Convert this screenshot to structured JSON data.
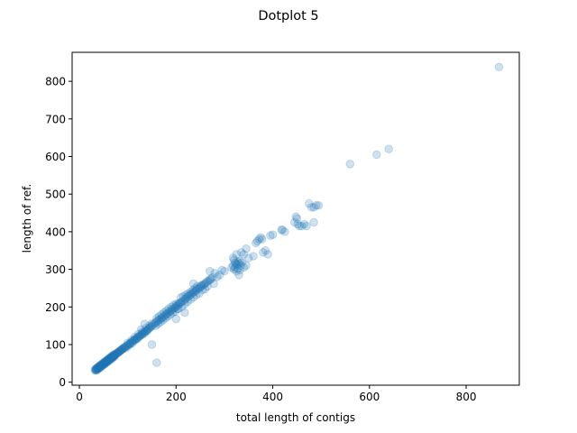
{
  "chart_data": {
    "type": "scatter",
    "title": "Dotplot 5",
    "xlabel": "total length of contigs",
    "ylabel": "length of ref.",
    "xlim": [
      -15,
      910
    ],
    "ylim": [
      -8,
      877
    ],
    "xticks": [
      0,
      200,
      400,
      600,
      800
    ],
    "yticks": [
      0,
      100,
      200,
      300,
      400,
      500,
      600,
      700,
      800
    ],
    "xtick_labels": [
      "0",
      "200",
      "400",
      "600",
      "800"
    ],
    "ytick_labels": [
      "0",
      "100",
      "200",
      "300",
      "400",
      "500",
      "600",
      "700",
      "800"
    ],
    "grid": false,
    "legend": "none",
    "marker_color": "#1f77b4",
    "marker_alpha": 0.22,
    "series": [
      {
        "points": [
          [
            32,
            32
          ],
          [
            33,
            33
          ],
          [
            34,
            33
          ],
          [
            35,
            34
          ],
          [
            36,
            35
          ],
          [
            37,
            36
          ],
          [
            38,
            37
          ],
          [
            39,
            38
          ],
          [
            40,
            39
          ],
          [
            41,
            40
          ],
          [
            42,
            41
          ],
          [
            43,
            42
          ],
          [
            44,
            43
          ],
          [
            45,
            44
          ],
          [
            46,
            45
          ],
          [
            47,
            46
          ],
          [
            48,
            47
          ],
          [
            49,
            48
          ],
          [
            50,
            49
          ],
          [
            51,
            50
          ],
          [
            52,
            51
          ],
          [
            53,
            52
          ],
          [
            54,
            53
          ],
          [
            55,
            54
          ],
          [
            56,
            55
          ],
          [
            57,
            56
          ],
          [
            58,
            57
          ],
          [
            59,
            58
          ],
          [
            60,
            59
          ],
          [
            61,
            60
          ],
          [
            62,
            61
          ],
          [
            63,
            62
          ],
          [
            64,
            63
          ],
          [
            65,
            64
          ],
          [
            66,
            65
          ],
          [
            67,
            66
          ],
          [
            68,
            67
          ],
          [
            69,
            68
          ],
          [
            70,
            69
          ],
          [
            71,
            70
          ],
          [
            72,
            71
          ],
          [
            73,
            72
          ],
          [
            74,
            73
          ],
          [
            75,
            74
          ],
          [
            76,
            75
          ],
          [
            77,
            76
          ],
          [
            78,
            77
          ],
          [
            79,
            78
          ],
          [
            80,
            79
          ],
          [
            81,
            80
          ],
          [
            82,
            81
          ],
          [
            83,
            82
          ],
          [
            84,
            83
          ],
          [
            85,
            84
          ],
          [
            86,
            85
          ],
          [
            87,
            86
          ],
          [
            88,
            87
          ],
          [
            89,
            88
          ],
          [
            90,
            89
          ],
          [
            91,
            90
          ],
          [
            34,
            36
          ],
          [
            36,
            38
          ],
          [
            38,
            40
          ],
          [
            40,
            42
          ],
          [
            42,
            44
          ],
          [
            44,
            46
          ],
          [
            46,
            48
          ],
          [
            48,
            50
          ],
          [
            50,
            52
          ],
          [
            52,
            54
          ],
          [
            54,
            56
          ],
          [
            56,
            58
          ],
          [
            58,
            60
          ],
          [
            60,
            62
          ],
          [
            62,
            64
          ],
          [
            64,
            66
          ],
          [
            66,
            68
          ],
          [
            68,
            70
          ],
          [
            70,
            72
          ],
          [
            72,
            74
          ],
          [
            35,
            31
          ],
          [
            37,
            33
          ],
          [
            39,
            35
          ],
          [
            41,
            37
          ],
          [
            43,
            39
          ],
          [
            45,
            41
          ],
          [
            47,
            43
          ],
          [
            49,
            45
          ],
          [
            51,
            47
          ],
          [
            53,
            49
          ],
          [
            55,
            51
          ],
          [
            57,
            53
          ],
          [
            59,
            55
          ],
          [
            61,
            57
          ],
          [
            63,
            59
          ],
          [
            65,
            61
          ],
          [
            67,
            63
          ],
          [
            69,
            65
          ],
          [
            71,
            67
          ],
          [
            73,
            69
          ],
          [
            92,
            92
          ],
          [
            94,
            93
          ],
          [
            96,
            95
          ],
          [
            98,
            97
          ],
          [
            100,
            99
          ],
          [
            102,
            100
          ],
          [
            104,
            103
          ],
          [
            106,
            104
          ],
          [
            108,
            107
          ],
          [
            110,
            108
          ],
          [
            112,
            111
          ],
          [
            114,
            112
          ],
          [
            116,
            115
          ],
          [
            118,
            116
          ],
          [
            120,
            119
          ],
          [
            122,
            120
          ],
          [
            124,
            123
          ],
          [
            126,
            124
          ],
          [
            128,
            127
          ],
          [
            130,
            128
          ],
          [
            132,
            131
          ],
          [
            134,
            133
          ],
          [
            136,
            135
          ],
          [
            138,
            136
          ],
          [
            140,
            139
          ],
          [
            142,
            140
          ],
          [
            144,
            143
          ],
          [
            146,
            145
          ],
          [
            148,
            147
          ],
          [
            150,
            149
          ],
          [
            95,
            90
          ],
          [
            100,
            95
          ],
          [
            105,
            101
          ],
          [
            110,
            104
          ],
          [
            115,
            112
          ],
          [
            120,
            115
          ],
          [
            125,
            122
          ],
          [
            130,
            126
          ],
          [
            135,
            130
          ],
          [
            140,
            136
          ],
          [
            100,
            104
          ],
          [
            108,
            112
          ],
          [
            115,
            120
          ],
          [
            122,
            128
          ],
          [
            130,
            134
          ],
          [
            138,
            144
          ],
          [
            145,
            150
          ],
          [
            150,
            156
          ],
          [
            135,
            155
          ],
          [
            128,
            140
          ],
          [
            152,
            152
          ],
          [
            155,
            156
          ],
          [
            158,
            158
          ],
          [
            160,
            161
          ],
          [
            162,
            164
          ],
          [
            165,
            166
          ],
          [
            168,
            168
          ],
          [
            170,
            171
          ],
          [
            172,
            172
          ],
          [
            175,
            176
          ],
          [
            178,
            178
          ],
          [
            180,
            181
          ],
          [
            182,
            183
          ],
          [
            185,
            186
          ],
          [
            188,
            188
          ],
          [
            190,
            191
          ],
          [
            192,
            193
          ],
          [
            195,
            196
          ],
          [
            198,
            198
          ],
          [
            200,
            201
          ],
          [
            160,
            170
          ],
          [
            165,
            175
          ],
          [
            170,
            180
          ],
          [
            175,
            185
          ],
          [
            180,
            190
          ],
          [
            185,
            195
          ],
          [
            190,
            200
          ],
          [
            195,
            205
          ],
          [
            200,
            208
          ],
          [
            205,
            210
          ],
          [
            158,
            150
          ],
          [
            163,
            155
          ],
          [
            168,
            160
          ],
          [
            173,
            165
          ],
          [
            178,
            170
          ],
          [
            183,
            175
          ],
          [
            188,
            180
          ],
          [
            193,
            185
          ],
          [
            198,
            188
          ],
          [
            203,
            195
          ],
          [
            202,
            203
          ],
          [
            205,
            206
          ],
          [
            208,
            210
          ],
          [
            210,
            212
          ],
          [
            212,
            214
          ],
          [
            215,
            216
          ],
          [
            218,
            220
          ],
          [
            220,
            222
          ],
          [
            222,
            225
          ],
          [
            225,
            228
          ],
          [
            228,
            230
          ],
          [
            230,
            233
          ],
          [
            232,
            235
          ],
          [
            235,
            238
          ],
          [
            238,
            240
          ],
          [
            240,
            242
          ],
          [
            242,
            245
          ],
          [
            245,
            248
          ],
          [
            248,
            250
          ],
          [
            250,
            252
          ],
          [
            210,
            225
          ],
          [
            215,
            228
          ],
          [
            220,
            232
          ],
          [
            225,
            235
          ],
          [
            230,
            240
          ],
          [
            235,
            245
          ],
          [
            240,
            250
          ],
          [
            236,
            262
          ],
          [
            244,
            255
          ],
          [
            252,
            258
          ],
          [
            205,
            195
          ],
          [
            212,
            200
          ],
          [
            218,
            208
          ],
          [
            224,
            214
          ],
          [
            230,
            220
          ],
          [
            236,
            226
          ],
          [
            242,
            232
          ],
          [
            248,
            236
          ],
          [
            200,
            168
          ],
          [
            218,
            185
          ],
          [
            252,
            255
          ],
          [
            255,
            258
          ],
          [
            258,
            260
          ],
          [
            260,
            262
          ],
          [
            262,
            265
          ],
          [
            265,
            268
          ],
          [
            268,
            270
          ],
          [
            270,
            272
          ],
          [
            272,
            275
          ],
          [
            275,
            278
          ],
          [
            270,
            295
          ],
          [
            280,
            290
          ],
          [
            278,
            262
          ],
          [
            255,
            245
          ],
          [
            260,
            248
          ],
          [
            265,
            255
          ],
          [
            285,
            280
          ],
          [
            290,
            285
          ],
          [
            295,
            298
          ],
          [
            300,
            295
          ],
          [
            150,
            100
          ],
          [
            160,
            52
          ],
          [
            318,
            330
          ],
          [
            320,
            325
          ],
          [
            322,
            318
          ],
          [
            324,
            315
          ],
          [
            326,
            312
          ],
          [
            328,
            320
          ],
          [
            330,
            315
          ],
          [
            332,
            322
          ],
          [
            334,
            310
          ],
          [
            336,
            318
          ],
          [
            320,
            300
          ],
          [
            325,
            295
          ],
          [
            330,
            285
          ],
          [
            315,
            305
          ],
          [
            318,
            310
          ],
          [
            322,
            305
          ],
          [
            328,
            302
          ],
          [
            332,
            298
          ],
          [
            325,
            340
          ],
          [
            335,
            345
          ],
          [
            340,
            340
          ],
          [
            345,
            355
          ],
          [
            350,
            330
          ],
          [
            340,
            305
          ],
          [
            345,
            310
          ],
          [
            360,
            335
          ],
          [
            365,
            370
          ],
          [
            368,
            375
          ],
          [
            372,
            380
          ],
          [
            375,
            385
          ],
          [
            378,
            380
          ],
          [
            380,
            345
          ],
          [
            385,
            350
          ],
          [
            390,
            340
          ],
          [
            395,
            390
          ],
          [
            400,
            392
          ],
          [
            418,
            405
          ],
          [
            420,
            405
          ],
          [
            425,
            400
          ],
          [
            445,
            425
          ],
          [
            448,
            440
          ],
          [
            450,
            435
          ],
          [
            452,
            420
          ],
          [
            455,
            415
          ],
          [
            460,
            415
          ],
          [
            465,
            420
          ],
          [
            470,
            415
          ],
          [
            475,
            475
          ],
          [
            480,
            465
          ],
          [
            485,
            465
          ],
          [
            490,
            470
          ],
          [
            495,
            470
          ],
          [
            485,
            425
          ],
          [
            560,
            580
          ],
          [
            615,
            605
          ],
          [
            640,
            620
          ],
          [
            868,
            838
          ]
        ]
      }
    ]
  }
}
